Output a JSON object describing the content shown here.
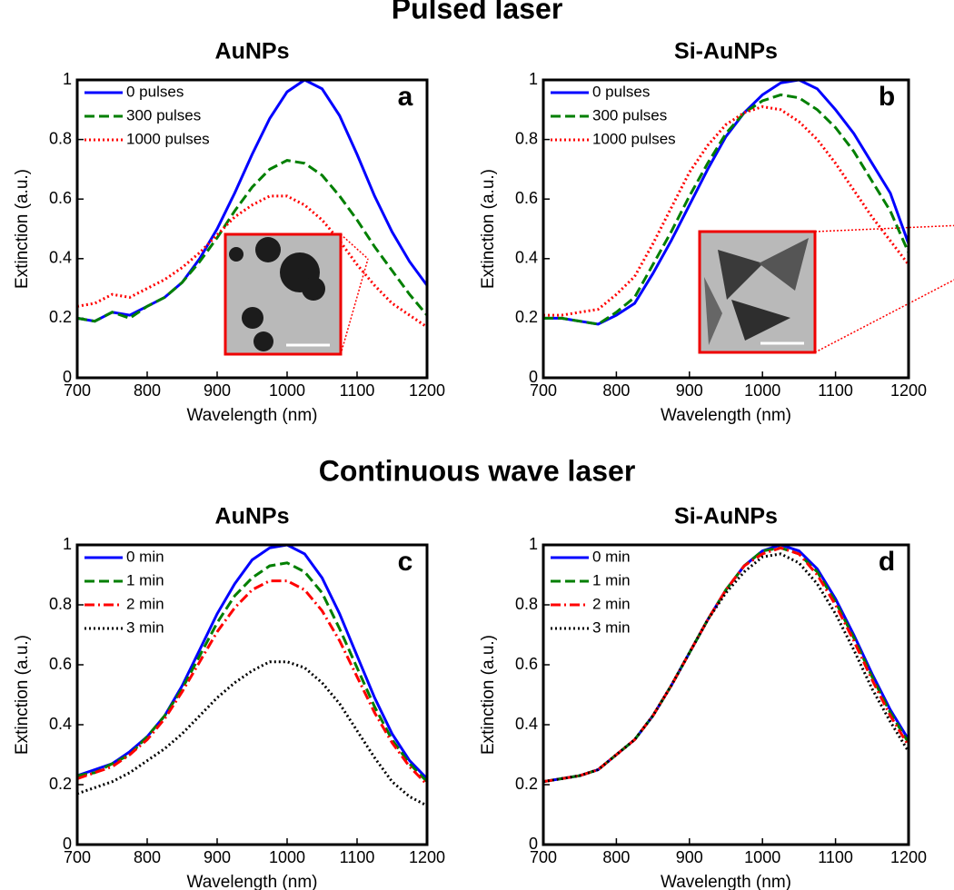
{
  "headings": [
    "Pulsed laser",
    "Continuous wave laser"
  ],
  "chart_data": [
    {
      "type": "line",
      "title": "AuNPs",
      "panel_label": "a",
      "x_label": "Wavelength (nm)",
      "y_label": "Extinction (a.u.)",
      "x": [
        700,
        725,
        750,
        775,
        800,
        825,
        850,
        875,
        900,
        925,
        950,
        975,
        1000,
        1025,
        1050,
        1075,
        1100,
        1125,
        1150,
        1175,
        1200
      ],
      "xlim": [
        700,
        1200
      ],
      "xticks": [
        700,
        800,
        900,
        1000,
        1100,
        1200
      ],
      "ylim": [
        0,
        1
      ],
      "yticks": [
        0,
        0.2,
        0.4,
        0.6,
        0.8,
        1
      ],
      "legend": "upper-left",
      "series": [
        {
          "name": "0 pulses",
          "color": "#0000ff",
          "style": "solid",
          "values": [
            0.2,
            0.19,
            0.22,
            0.21,
            0.24,
            0.27,
            0.32,
            0.4,
            0.5,
            0.62,
            0.75,
            0.87,
            0.96,
            1.0,
            0.97,
            0.88,
            0.75,
            0.61,
            0.49,
            0.39,
            0.31
          ]
        },
        {
          "name": "300 pulses",
          "color": "#007f00",
          "style": "dashed",
          "values": [
            0.2,
            0.19,
            0.22,
            0.2,
            0.24,
            0.27,
            0.32,
            0.39,
            0.47,
            0.56,
            0.64,
            0.7,
            0.73,
            0.72,
            0.68,
            0.61,
            0.53,
            0.44,
            0.36,
            0.28,
            0.21
          ]
        },
        {
          "name": "1000 pulses",
          "color": "#ff0000",
          "style": "dotted",
          "values": [
            0.24,
            0.25,
            0.28,
            0.27,
            0.3,
            0.33,
            0.37,
            0.42,
            0.48,
            0.54,
            0.58,
            0.61,
            0.61,
            0.58,
            0.53,
            0.46,
            0.38,
            0.31,
            0.25,
            0.21,
            0.17
          ]
        }
      ]
    },
    {
      "type": "line",
      "title": "Si-AuNPs",
      "panel_label": "b",
      "x_label": "Wavelength (nm)",
      "y_label": "Extinction (a.u.)",
      "x": [
        700,
        725,
        750,
        775,
        800,
        825,
        850,
        875,
        900,
        925,
        950,
        975,
        1000,
        1025,
        1050,
        1075,
        1100,
        1125,
        1150,
        1175,
        1200
      ],
      "xlim": [
        700,
        1200
      ],
      "xticks": [
        700,
        800,
        900,
        1000,
        1100,
        1200
      ],
      "ylim": [
        0,
        1
      ],
      "yticks": [
        0,
        0.2,
        0.4,
        0.6,
        0.8,
        1
      ],
      "legend": "upper-left",
      "series": [
        {
          "name": "0 pulses",
          "color": "#0000ff",
          "style": "solid",
          "values": [
            0.2,
            0.2,
            0.19,
            0.18,
            0.21,
            0.25,
            0.35,
            0.46,
            0.58,
            0.7,
            0.81,
            0.89,
            0.95,
            0.99,
            1.0,
            0.97,
            0.9,
            0.82,
            0.72,
            0.62,
            0.45
          ]
        },
        {
          "name": "300 pulses",
          "color": "#007f00",
          "style": "dashed",
          "values": [
            0.2,
            0.2,
            0.19,
            0.18,
            0.22,
            0.27,
            0.38,
            0.49,
            0.61,
            0.72,
            0.82,
            0.89,
            0.93,
            0.95,
            0.94,
            0.9,
            0.84,
            0.76,
            0.66,
            0.56,
            0.42
          ]
        },
        {
          "name": "1000 pulses",
          "color": "#ff0000",
          "style": "dotted",
          "values": [
            0.21,
            0.21,
            0.22,
            0.23,
            0.28,
            0.34,
            0.45,
            0.57,
            0.69,
            0.78,
            0.85,
            0.89,
            0.91,
            0.9,
            0.86,
            0.8,
            0.72,
            0.63,
            0.54,
            0.46,
            0.38
          ]
        }
      ]
    },
    {
      "type": "line",
      "title": "AuNPs",
      "panel_label": "c",
      "x_label": "Wavelength (nm)",
      "y_label": "Extinction (a.u.)",
      "x": [
        700,
        725,
        750,
        775,
        800,
        825,
        850,
        875,
        900,
        925,
        950,
        975,
        1000,
        1025,
        1050,
        1075,
        1100,
        1125,
        1150,
        1175,
        1200
      ],
      "xlim": [
        700,
        1200
      ],
      "xticks": [
        700,
        800,
        900,
        1000,
        1100,
        1200
      ],
      "ylim": [
        0,
        1
      ],
      "yticks": [
        0,
        0.2,
        0.4,
        0.6,
        0.8,
        1
      ],
      "legend": "upper-left",
      "series": [
        {
          "name": "0 min",
          "color": "#0000ff",
          "style": "solid",
          "values": [
            0.23,
            0.25,
            0.27,
            0.31,
            0.36,
            0.43,
            0.53,
            0.65,
            0.77,
            0.87,
            0.95,
            0.99,
            1.0,
            0.97,
            0.89,
            0.77,
            0.63,
            0.49,
            0.37,
            0.28,
            0.22
          ]
        },
        {
          "name": "1 min",
          "color": "#007f00",
          "style": "dashed",
          "values": [
            0.23,
            0.24,
            0.27,
            0.3,
            0.36,
            0.43,
            0.52,
            0.63,
            0.74,
            0.83,
            0.89,
            0.93,
            0.94,
            0.91,
            0.84,
            0.72,
            0.59,
            0.46,
            0.35,
            0.27,
            0.21
          ]
        },
        {
          "name": "2 min",
          "color": "#ff0000",
          "style": "dashdot",
          "values": [
            0.22,
            0.24,
            0.26,
            0.3,
            0.35,
            0.42,
            0.51,
            0.61,
            0.71,
            0.79,
            0.85,
            0.88,
            0.88,
            0.85,
            0.78,
            0.68,
            0.56,
            0.44,
            0.34,
            0.26,
            0.2
          ]
        },
        {
          "name": "3 min",
          "color": "#000000",
          "style": "dotted",
          "values": [
            0.17,
            0.19,
            0.21,
            0.24,
            0.28,
            0.32,
            0.37,
            0.43,
            0.49,
            0.54,
            0.58,
            0.61,
            0.61,
            0.59,
            0.54,
            0.47,
            0.38,
            0.29,
            0.21,
            0.16,
            0.13
          ]
        }
      ]
    },
    {
      "type": "line",
      "title": "Si-AuNPs",
      "panel_label": "d",
      "x_label": "Wavelength (nm)",
      "y_label": "Extinction (a.u.)",
      "x": [
        700,
        725,
        750,
        775,
        800,
        825,
        850,
        875,
        900,
        925,
        950,
        975,
        1000,
        1025,
        1050,
        1075,
        1100,
        1125,
        1150,
        1175,
        1200
      ],
      "xlim": [
        700,
        1200
      ],
      "xticks": [
        700,
        800,
        900,
        1000,
        1100,
        1200
      ],
      "ylim": [
        0,
        1
      ],
      "yticks": [
        0,
        0.2,
        0.4,
        0.6,
        0.8,
        1
      ],
      "legend": "upper-left",
      "series": [
        {
          "name": "0 min",
          "color": "#0000ff",
          "style": "solid",
          "values": [
            0.21,
            0.22,
            0.23,
            0.25,
            0.3,
            0.35,
            0.43,
            0.53,
            0.64,
            0.75,
            0.85,
            0.93,
            0.98,
            1.0,
            0.98,
            0.92,
            0.82,
            0.7,
            0.57,
            0.45,
            0.35
          ]
        },
        {
          "name": "1 min",
          "color": "#007f00",
          "style": "dashed",
          "values": [
            0.21,
            0.22,
            0.23,
            0.25,
            0.3,
            0.35,
            0.43,
            0.53,
            0.64,
            0.75,
            0.85,
            0.93,
            0.98,
            0.99,
            0.97,
            0.91,
            0.81,
            0.69,
            0.56,
            0.44,
            0.34
          ]
        },
        {
          "name": "2 min",
          "color": "#ff0000",
          "style": "dashdot",
          "values": [
            0.21,
            0.22,
            0.23,
            0.25,
            0.3,
            0.35,
            0.43,
            0.53,
            0.64,
            0.75,
            0.85,
            0.93,
            0.97,
            0.99,
            0.97,
            0.9,
            0.8,
            0.68,
            0.55,
            0.43,
            0.33
          ]
        },
        {
          "name": "3 min",
          "color": "#000000",
          "style": "dotted",
          "values": [
            0.21,
            0.22,
            0.23,
            0.25,
            0.3,
            0.35,
            0.43,
            0.53,
            0.64,
            0.75,
            0.84,
            0.91,
            0.96,
            0.97,
            0.94,
            0.87,
            0.77,
            0.65,
            0.52,
            0.41,
            0.31
          ]
        }
      ]
    }
  ]
}
